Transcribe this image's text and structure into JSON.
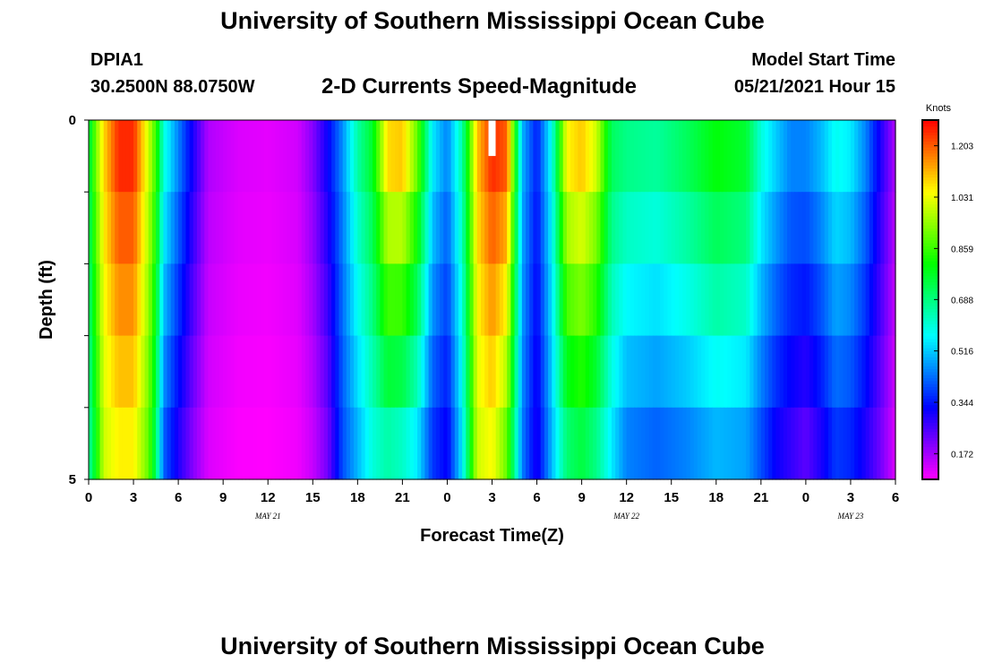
{
  "header": {
    "title": "University of Southern Mississippi Ocean Cube",
    "station_id": "DPIA1",
    "station_coords": "30.2500N  88.0750W",
    "subtitle": "2-D Currents Speed-Magnitude",
    "model_start_label": "Model Start Time",
    "model_start_value": "05/21/2021 Hour 15"
  },
  "footer": {
    "title": "University of Southern Mississippi Ocean Cube"
  },
  "chart_data": {
    "type": "heatmap",
    "title": "2-D Currents Speed-Magnitude",
    "xlabel": "Forecast Time(Z)",
    "ylabel": "Depth (ft)",
    "x_tick_labels": [
      "0",
      "3",
      "6",
      "9",
      "12",
      "15",
      "18",
      "21",
      "0",
      "3",
      "6",
      "9",
      "12",
      "15",
      "18",
      "21",
      "0",
      "3",
      "6"
    ],
    "x_ticks_hours": [
      0,
      3,
      6,
      9,
      12,
      15,
      18,
      21,
      24,
      27,
      30,
      33,
      36,
      39,
      42,
      45,
      48,
      51,
      54
    ],
    "x_range_hours": [
      0,
      54
    ],
    "date_labels": [
      {
        "text": "MAY 21",
        "hour": 12
      },
      {
        "text": "MAY 22",
        "hour": 36
      },
      {
        "text": "MAY 23",
        "hour": 51
      }
    ],
    "y_tick_labels": [
      "0",
      "5"
    ],
    "y_range": [
      0,
      5
    ],
    "depth_layers": [
      0,
      1,
      2,
      3,
      4,
      5
    ],
    "colorbar": {
      "unit": "Knots",
      "min": 0.086,
      "max": 1.289,
      "tick_labels": [
        "1.203",
        "1.031",
        "0.859",
        "0.688",
        "0.516",
        "0.344",
        "0.172"
      ],
      "tick_values": [
        1.203,
        1.031,
        0.859,
        0.688,
        0.516,
        0.344,
        0.172
      ]
    },
    "surface_speed_profile": [
      [
        0,
        0.72
      ],
      [
        0.5,
        0.92
      ],
      [
        1,
        1.08
      ],
      [
        2,
        1.25
      ],
      [
        3,
        1.25
      ],
      [
        4,
        1.0
      ],
      [
        4.5,
        0.86
      ],
      [
        5,
        0.6
      ],
      [
        6,
        0.45
      ],
      [
        7,
        0.3
      ],
      [
        8,
        0.16
      ],
      [
        10,
        0.12
      ],
      [
        12,
        0.11
      ],
      [
        14,
        0.13
      ],
      [
        15,
        0.2
      ],
      [
        16,
        0.32
      ],
      [
        17,
        0.46
      ],
      [
        18,
        0.65
      ],
      [
        19,
        0.77
      ],
      [
        20,
        1.08
      ],
      [
        21,
        1.1
      ],
      [
        22,
        0.9
      ],
      [
        23,
        0.55
      ],
      [
        24,
        0.45
      ],
      [
        25,
        0.65
      ],
      [
        26,
        1.1
      ],
      [
        27,
        1.25
      ],
      [
        28,
        1.2
      ],
      [
        29,
        0.5
      ],
      [
        30,
        0.35
      ],
      [
        31,
        0.58
      ],
      [
        32,
        1.05
      ],
      [
        33,
        1.1
      ],
      [
        34,
        1.0
      ],
      [
        35,
        0.72
      ],
      [
        36,
        0.68
      ],
      [
        38,
        0.66
      ],
      [
        40,
        0.72
      ],
      [
        42,
        0.8
      ],
      [
        44,
        0.76
      ],
      [
        45,
        0.6
      ],
      [
        46,
        0.52
      ],
      [
        47,
        0.45
      ],
      [
        48,
        0.45
      ],
      [
        49,
        0.5
      ],
      [
        50,
        0.58
      ],
      [
        51,
        0.55
      ],
      [
        52,
        0.45
      ],
      [
        53,
        0.3
      ],
      [
        54,
        0.16
      ]
    ],
    "bottom_speed_profile": [
      [
        0,
        0.65
      ],
      [
        0.5,
        0.8
      ],
      [
        1,
        1.0
      ],
      [
        2,
        1.06
      ],
      [
        3,
        1.06
      ],
      [
        4,
        0.9
      ],
      [
        4.5,
        0.72
      ],
      [
        5,
        0.42
      ],
      [
        6,
        0.3
      ],
      [
        7,
        0.2
      ],
      [
        8,
        0.12
      ],
      [
        10,
        0.09
      ],
      [
        12,
        0.086
      ],
      [
        14,
        0.1
      ],
      [
        15,
        0.14
      ],
      [
        16,
        0.22
      ],
      [
        17,
        0.4
      ],
      [
        18,
        0.5
      ],
      [
        19,
        0.6
      ],
      [
        20,
        0.65
      ],
      [
        21,
        0.62
      ],
      [
        22,
        0.55
      ],
      [
        23,
        0.38
      ],
      [
        24,
        0.32
      ],
      [
        25,
        0.55
      ],
      [
        26,
        1.0
      ],
      [
        27,
        1.05
      ],
      [
        28,
        0.9
      ],
      [
        29,
        0.45
      ],
      [
        30,
        0.3
      ],
      [
        31,
        0.5
      ],
      [
        32,
        0.7
      ],
      [
        33,
        0.75
      ],
      [
        34,
        0.68
      ],
      [
        35,
        0.55
      ],
      [
        36,
        0.45
      ],
      [
        38,
        0.42
      ],
      [
        40,
        0.45
      ],
      [
        42,
        0.5
      ],
      [
        44,
        0.48
      ],
      [
        45,
        0.4
      ],
      [
        46,
        0.32
      ],
      [
        47,
        0.28
      ],
      [
        48,
        0.24
      ],
      [
        49,
        0.3
      ],
      [
        50,
        0.38
      ],
      [
        51,
        0.36
      ],
      [
        52,
        0.3
      ],
      [
        53,
        0.22
      ],
      [
        54,
        0.12
      ]
    ],
    "missing_data": [
      {
        "hour": 27,
        "depth_from": 0,
        "depth_to": 0.5
      }
    ]
  }
}
